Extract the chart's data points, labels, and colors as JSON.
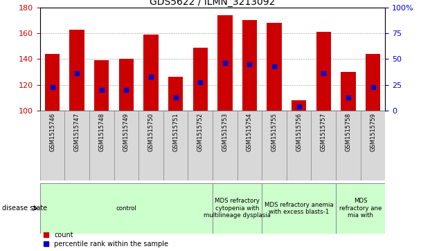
{
  "title": "GDS5622 / ILMN_3213092",
  "samples": [
    "GSM1515746",
    "GSM1515747",
    "GSM1515748",
    "GSM1515749",
    "GSM1515750",
    "GSM1515751",
    "GSM1515752",
    "GSM1515753",
    "GSM1515754",
    "GSM1515755",
    "GSM1515756",
    "GSM1515757",
    "GSM1515758",
    "GSM1515759"
  ],
  "counts": [
    144,
    163,
    139,
    140,
    159,
    126,
    149,
    174,
    170,
    168,
    108,
    161,
    130,
    144
  ],
  "percentile_ranks": [
    118,
    129,
    116,
    116,
    126,
    110,
    122,
    137,
    136,
    134,
    103,
    129,
    110,
    118
  ],
  "ylim_left": [
    100,
    180
  ],
  "ylim_right": [
    0,
    100
  ],
  "yticks_left": [
    100,
    120,
    140,
    160,
    180
  ],
  "yticks_right": [
    0,
    25,
    50,
    75,
    100
  ],
  "bar_color": "#cc0000",
  "dot_color": "#0000cc",
  "disease_groups": [
    {
      "label": "control",
      "start": 0,
      "end": 7,
      "color": "#ccffcc"
    },
    {
      "label": "MDS refractory\ncytopenia with\nmultilineage dysplasia",
      "start": 7,
      "end": 9,
      "color": "#ccffcc"
    },
    {
      "label": "MDS refractory anemia\nwith excess blasts-1",
      "start": 9,
      "end": 12,
      "color": "#ccffcc"
    },
    {
      "label": "MDS\nrefractory ane\nmia with",
      "start": 12,
      "end": 14,
      "color": "#ccffcc"
    }
  ],
  "disease_state_label": "disease state",
  "legend_count_label": "count",
  "legend_pct_label": "percentile rank within the sample",
  "background_color": "#ffffff",
  "grid_color": "#888888",
  "tick_label_color_left": "#cc0000",
  "tick_label_color_right": "#0000cc",
  "bar_width": 0.6,
  "dot_marker_size": 4
}
